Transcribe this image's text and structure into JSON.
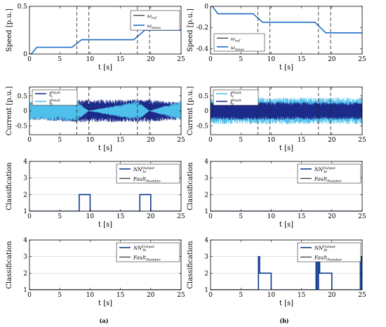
{
  "chart_data": [
    {
      "type": "line",
      "panel": "a1",
      "xlabel": "t [s]",
      "ylabel": "Speed [p.u.]",
      "xlim": [
        0,
        25
      ],
      "ylim": [
        0,
        0.5
      ],
      "xticks": [
        0,
        5,
        10,
        15,
        20,
        25
      ],
      "yticks": [
        0,
        0.5
      ],
      "ytick_labels": [
        "0",
        "0.5"
      ],
      "vlines": [
        7.8,
        9.8,
        17.8,
        19.8
      ],
      "legend": {
        "placement": "top-right",
        "entries": [
          "ω_ref",
          "ω_meas"
        ]
      },
      "series": [
        {
          "name": "ω_ref",
          "color": "#000000",
          "x": [
            0,
            0.3,
            1.2,
            7.0,
            8.6,
            17.2,
            19.0,
            25
          ],
          "y": [
            0,
            0,
            0.07,
            0.07,
            0.15,
            0.15,
            0.25,
            0.25
          ]
        },
        {
          "name": "ω_meas",
          "color": "#1f6fc5",
          "x": [
            0,
            0.3,
            1.2,
            7.0,
            8.6,
            17.2,
            19.0,
            25
          ],
          "y": [
            0,
            0,
            0.07,
            0.07,
            0.15,
            0.15,
            0.25,
            0.25
          ]
        }
      ]
    },
    {
      "type": "line",
      "panel": "b1",
      "xlabel": "t [s]",
      "ylabel": "Speed [p.u.]",
      "xlim": [
        0,
        25
      ],
      "ylim": [
        -0.45,
        0
      ],
      "xticks": [
        0,
        5,
        10,
        15,
        20,
        25
      ],
      "yticks": [
        0,
        -0.2,
        -0.4
      ],
      "ytick_labels": [
        "0",
        "-0.2",
        "-0.4"
      ],
      "vlines": [
        7.8,
        9.8,
        17.8,
        19.8
      ],
      "legend": {
        "placement": "bottom-left",
        "entries": [
          "ω_ref",
          "ω_meas"
        ]
      },
      "series": [
        {
          "name": "ω_ref",
          "color": "#000000",
          "x": [
            0,
            0.3,
            1.2,
            7.0,
            8.6,
            17.2,
            19.0,
            25
          ],
          "y": [
            0,
            0,
            -0.07,
            -0.07,
            -0.15,
            -0.15,
            -0.25,
            -0.25
          ]
        },
        {
          "name": "ω_meas",
          "color": "#1f6fc5",
          "x": [
            0,
            0.3,
            1.2,
            7.0,
            8.6,
            17.2,
            19.0,
            25
          ],
          "y": [
            0,
            0,
            -0.07,
            -0.07,
            -0.15,
            -0.15,
            -0.25,
            -0.25
          ]
        }
      ]
    },
    {
      "type": "line",
      "panel": "a2",
      "xlabel": "t [s]",
      "ylabel": "Current [p.u.]",
      "xlim": [
        0,
        25
      ],
      "ylim": [
        -0.8,
        0.8
      ],
      "xticks": [
        0,
        5,
        10,
        15,
        20,
        25
      ],
      "yticks": [
        0.5,
        0,
        -0.5
      ],
      "ytick_labels": [
        "0.5",
        "0",
        "-0.5"
      ],
      "vlines": [
        7.8,
        9.8,
        17.8,
        19.8
      ],
      "legend": {
        "placement": "top-left",
        "entries": [
          "I_a^Fault",
          "I_b^Fault"
        ]
      },
      "series": [
        {
          "name": "I_a^Fault",
          "color": "#1c2a8a",
          "envelope": [
            [
              0,
              0.3
            ],
            [
              8.0,
              0.38
            ],
            [
              9.6,
              0.38
            ],
            [
              18.0,
              0.38
            ],
            [
              19.6,
              0.38
            ],
            [
              25,
              0.3
            ]
          ]
        },
        {
          "name": "I_b^Fault",
          "color": "#4fc0ec",
          "envelope": [
            [
              0,
              0.3
            ],
            [
              7.8,
              0.35
            ],
            [
              9.8,
              0.0
            ],
            [
              17.8,
              0.35
            ],
            [
              19.8,
              0.0
            ],
            [
              25,
              0.35
            ]
          ]
        }
      ]
    },
    {
      "type": "line",
      "panel": "b2",
      "xlabel": "t [s]",
      "ylabel": "Current [p.u.]",
      "xlim": [
        0,
        25
      ],
      "ylim": [
        -0.8,
        0.8
      ],
      "xticks": [
        0,
        5,
        10,
        15,
        20,
        25
      ],
      "yticks": [
        0.5,
        0,
        -0.5
      ],
      "ytick_labels": [
        "0.5",
        "0",
        "-0.5"
      ],
      "vlines": [
        7.8,
        9.8,
        17.8,
        19.8
      ],
      "legend": {
        "placement": "top-left",
        "entries": [
          "I_a^Fault",
          "I_b^Fault"
        ]
      },
      "series": [
        {
          "name": "I_a^Fault",
          "color": "#4fc0ec",
          "envelope": [
            [
              0,
              0.45
            ],
            [
              25,
              0.45
            ]
          ]
        },
        {
          "name": "I_b^Fault",
          "color": "#1c2a8a",
          "envelope": [
            [
              0,
              0.3
            ],
            [
              25,
              0.3
            ]
          ]
        }
      ]
    },
    {
      "type": "line",
      "panel": "a3",
      "xlabel": "t [s]",
      "ylabel": "Classification",
      "xlim": [
        0,
        25
      ],
      "ylim": [
        1,
        4
      ],
      "xticks": [
        0,
        5,
        10,
        15,
        20,
        25
      ],
      "yticks": [
        1,
        2,
        3,
        4
      ],
      "grid": "horizontal",
      "legend": {
        "placement": "top-right",
        "entries": [
          "NN_Ia^Output",
          "Fault_Number"
        ]
      },
      "series": [
        {
          "name": "NN_Ia^Output",
          "color": "#0b3a8c",
          "x": [
            0,
            8.2,
            8.2,
            10.0,
            10.0,
            18.2,
            18.2,
            20.0,
            20.0,
            25
          ],
          "y": [
            1,
            1,
            2,
            2,
            1,
            1,
            2,
            2,
            1,
            1
          ]
        },
        {
          "name": "Fault_Number",
          "color": "#000000",
          "x": [
            0,
            25
          ],
          "y": [
            1,
            1
          ]
        }
      ]
    },
    {
      "type": "line",
      "panel": "b3",
      "xlabel": "t [s]",
      "ylabel": "Classification",
      "xlim": [
        0,
        25
      ],
      "ylim": [
        1,
        4
      ],
      "xticks": [
        0,
        5,
        10,
        15,
        20,
        25
      ],
      "yticks": [
        1,
        2,
        3,
        4
      ],
      "grid": "horizontal",
      "legend": {
        "placement": "top-right",
        "entries": [
          "NN_Ia^Output",
          "Fault_Number"
        ]
      },
      "series": [
        {
          "name": "NN_Ia^Output",
          "color": "#0b3a8c",
          "x": [
            0,
            25
          ],
          "y": [
            1,
            1
          ]
        },
        {
          "name": "Fault_Number",
          "color": "#000000",
          "x": [
            0,
            25
          ],
          "y": [
            1,
            1
          ]
        }
      ]
    },
    {
      "type": "line",
      "panel": "a4",
      "xlabel": "t [s]",
      "ylabel": "Classification",
      "xlim": [
        0,
        25
      ],
      "ylim": [
        1,
        4
      ],
      "xticks": [
        0,
        5,
        10,
        15,
        20,
        25
      ],
      "yticks": [
        1,
        2,
        3,
        4
      ],
      "grid": "horizontal",
      "legend": {
        "placement": "top-right",
        "entries": [
          "NN_Ib^Output",
          "Fault_Number"
        ]
      },
      "series": [
        {
          "name": "NN_Ib^Output",
          "color": "#0b3a8c",
          "x": [
            0,
            25
          ],
          "y": [
            1,
            1
          ]
        },
        {
          "name": "Fault_Number",
          "color": "#000000",
          "x": [
            0,
            25
          ],
          "y": [
            1,
            1
          ]
        }
      ]
    },
    {
      "type": "line",
      "panel": "b4",
      "xlabel": "t [s]",
      "ylabel": "Classification",
      "xlim": [
        0,
        25
      ],
      "ylim": [
        1,
        4
      ],
      "xticks": [
        0,
        5,
        10,
        15,
        20,
        25
      ],
      "yticks": [
        1,
        2,
        3,
        4
      ],
      "grid": "horizontal",
      "legend": {
        "placement": "top-right",
        "entries": [
          "NN_Ib^Output",
          "Fault_Number"
        ]
      },
      "series": [
        {
          "name": "NN_Ib^Output",
          "color": "#0b3a8c",
          "x": [
            0,
            7.9,
            7.9,
            8.1,
            8.1,
            10.0,
            10.0,
            17.4,
            17.4,
            17.6,
            17.6,
            17.8,
            17.8,
            18.0,
            18.0,
            20.0,
            20.0,
            24.7,
            24.7,
            24.9,
            24.9,
            25
          ],
          "y": [
            1,
            1,
            3,
            3,
            2,
            2,
            1,
            1,
            3,
            3,
            1,
            1,
            3,
            3,
            2,
            2,
            1,
            1,
            3,
            3,
            1,
            1
          ]
        },
        {
          "name": "Fault_Number",
          "color": "#000000",
          "x": [
            0,
            25
          ],
          "y": [
            1,
            1
          ]
        }
      ]
    }
  ],
  "subfigure_labels": [
    "(a)",
    "(b)"
  ]
}
